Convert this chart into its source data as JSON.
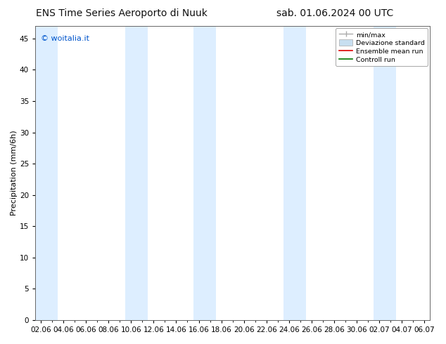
{
  "title_left": "ENS Time Series Aeroporto di Nuuk",
  "title_right": "sab. 01.06.2024 00 UTC",
  "ylabel": "Precipitation (mm/6h)",
  "watermark": "© woitalia.it",
  "watermark_color": "#0055cc",
  "ylim": [
    0,
    47
  ],
  "yticks": [
    0,
    5,
    10,
    15,
    20,
    25,
    30,
    35,
    40,
    45
  ],
  "xtick_labels": [
    "02.06",
    "04.06",
    "06.06",
    "08.06",
    "10.06",
    "12.06",
    "14.06",
    "16.06",
    "18.06",
    "20.06",
    "22.06",
    "24.06",
    "26.06",
    "28.06",
    "30.06",
    "02.07",
    "04.07",
    "06.07"
  ],
  "xtick_positions": [
    0,
    2,
    4,
    6,
    8,
    10,
    12,
    14,
    16,
    18,
    20,
    22,
    24,
    26,
    28,
    30,
    32,
    34
  ],
  "xlim": [
    -0.5,
    34.5
  ],
  "shade_bands": [
    {
      "start": -0.5,
      "end": 1.5
    },
    {
      "start": 7.5,
      "end": 9.5
    },
    {
      "start": 13.5,
      "end": 15.5
    },
    {
      "start": 21.5,
      "end": 23.5
    },
    {
      "start": 29.5,
      "end": 31.5
    }
  ],
  "shade_color": "#ddeeff",
  "legend_labels": [
    "min/max",
    "Deviazione standard",
    "Ensemble mean run",
    "Controll run"
  ],
  "legend_line_colors": [
    "#aaaaaa",
    "#c8dff0",
    "#dd0000",
    "#007700"
  ],
  "background_color": "#ffffff",
  "font_size_title": 10,
  "font_size_axis": 8,
  "font_size_ticks": 7.5,
  "font_size_watermark": 8
}
